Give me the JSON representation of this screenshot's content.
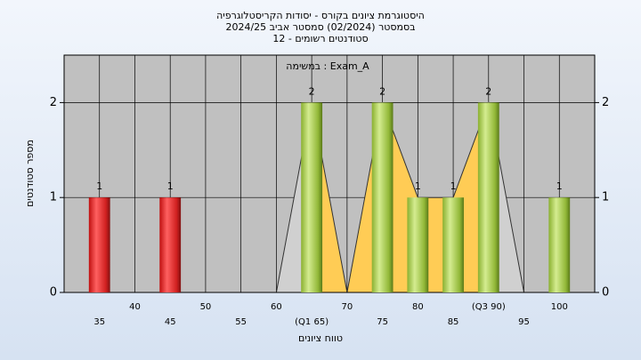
{
  "chart_data": {
    "type": "bar",
    "title": "היסטוגרמת ציונים בקורס - יסודות הקריסטלוגרפיה",
    "subtitle": "בסמסטר  (02/2024)  סמסטר אביב 2024/25",
    "subtitle2": "סטודנטים רשומים - 12",
    "annotation": "במשימה : Exam_A",
    "y_label": "מספר סטודנטים",
    "x_label": "טווח ציונים",
    "x": [
      35,
      45,
      65,
      75,
      80,
      85,
      90,
      100
    ],
    "values": [
      1,
      1,
      2,
      2,
      1,
      1,
      2,
      1
    ],
    "colors": [
      "red",
      "red",
      "green",
      "green",
      "green",
      "green",
      "green",
      "green"
    ],
    "xlim": [
      30,
      105
    ],
    "xticks": [
      35,
      40,
      45,
      50,
      55,
      60,
      {
        "value": 65,
        "label": "(Q1 65)"
      },
      70,
      75,
      80,
      85,
      {
        "value": 90,
        "label": "(Q3 90)"
      },
      95,
      100
    ],
    "ylim": [
      0,
      2.5
    ],
    "yticks": [
      0,
      1,
      2
    ],
    "y2lim": [
      0,
      2.5
    ],
    "y2ticks": [
      0,
      1,
      2
    ],
    "grid": true
  }
}
